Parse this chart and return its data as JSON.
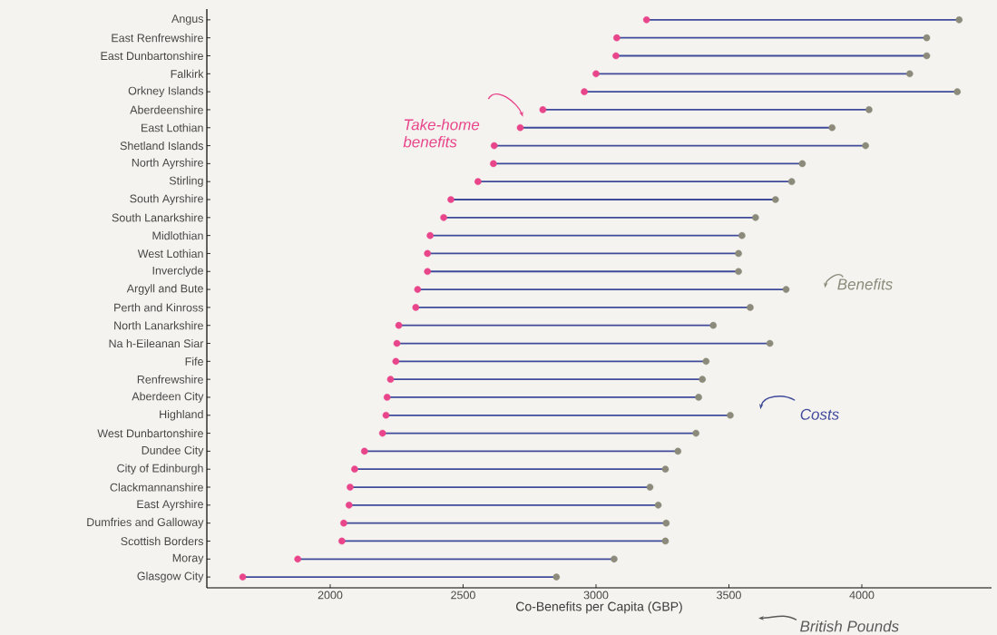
{
  "chart_data": {
    "type": "bar",
    "orientation": "horizontal",
    "xlabel": "Co-Benefits per Capita (GBP)",
    "xlim": [
      1536,
      4488
    ],
    "xticks": [
      2000,
      2500,
      3000,
      3500,
      4000
    ],
    "marker": "circle",
    "grid": false,
    "annotations": [
      "British Pounds"
    ],
    "categories": [
      "Angus",
      "East Renfrewshire",
      "East Dunbartonshire",
      "Falkirk",
      "Orkney Islands",
      "Aberdeenshire",
      "East Lothian",
      "Shetland Islands",
      "North Ayrshire",
      "Stirling",
      "South Ayrshire",
      "South Lanarkshire",
      "Midlothian",
      "West Lothian",
      "Inverclyde",
      "Argyll and Bute",
      "Perth and Kinross",
      "North Lanarkshire",
      "Na h-Eileanan Siar",
      "Fife",
      "Renfrewshire",
      "Aberdeen City",
      "Highland",
      "West Dunbartonshire",
      "Dundee City",
      "City of Edinburgh",
      "Clackmannanshire",
      "East Ayrshire",
      "Dumfries and Galloway",
      "Scottish Borders",
      "Moray",
      "Glasgow City"
    ],
    "series": [
      {
        "name": "Costs",
        "color": "#3f4a9a",
        "base": [
          3190,
          3078,
          3075,
          3000,
          2956,
          2800,
          2715,
          2617,
          2614,
          2556,
          2454,
          2427,
          2376,
          2366,
          2366,
          2329,
          2322,
          2258,
          2251,
          2247,
          2227,
          2214,
          2210,
          2197,
          2129,
          2092,
          2075,
          2071,
          2051,
          2044,
          1878,
          1671
        ],
        "values": [
          1176,
          1166,
          1169,
          1180,
          1403,
          1227,
          1173,
          1397,
          1162,
          1180,
          1221,
          1173,
          1173,
          1170,
          1170,
          1386,
          1258,
          1183,
          1403,
          1167,
          1173,
          1172,
          1295,
          1179,
          1179,
          1169,
          1128,
          1163,
          1213,
          1217,
          1190,
          1180
        ]
      },
      {
        "name": "Take-home benefits",
        "type": "scatter",
        "color": "#e8458b",
        "values": [
          3190,
          3078,
          3075,
          3000,
          2956,
          2800,
          2715,
          2617,
          2614,
          2556,
          2454,
          2427,
          2376,
          2366,
          2366,
          2329,
          2322,
          2258,
          2251,
          2247,
          2227,
          2214,
          2210,
          2197,
          2129,
          2092,
          2075,
          2071,
          2051,
          2044,
          1878,
          1671
        ]
      },
      {
        "name": "Benefits",
        "type": "scatter",
        "color": "#8c8a7a",
        "values": [
          4366,
          4244,
          4244,
          4180,
          4359,
          4027,
          3888,
          4014,
          3776,
          3736,
          3675,
          3600,
          3549,
          3536,
          3536,
          3715,
          3580,
          3441,
          3654,
          3414,
          3400,
          3386,
          3505,
          3376,
          3308,
          3261,
          3203,
          3234,
          3264,
          3261,
          3068,
          2851
        ]
      }
    ]
  }
}
